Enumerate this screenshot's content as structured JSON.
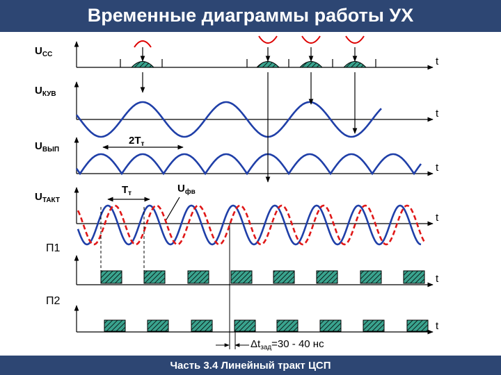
{
  "header": {
    "title": "Временные диаграммы работы УХ"
  },
  "signals": [
    {
      "name": "U",
      "sub": "СС"
    },
    {
      "name": "U",
      "sub": "КУВ"
    },
    {
      "name": "U",
      "sub": "ВЫП"
    },
    {
      "name": "U",
      "sub": "ТАКТ"
    },
    {
      "name": "П1"
    },
    {
      "name": "П2"
    }
  ],
  "axis_label": "t",
  "annotations": {
    "double_period": {
      "text": "2T",
      "sub": "т"
    },
    "period": {
      "text": "T",
      "sub": "т"
    },
    "phase_voltage": {
      "text": "U",
      "sub": "фв"
    },
    "delay": {
      "text": "Δt",
      "sub": "зад",
      "value": "=30 - 40 нс"
    }
  },
  "footer": {
    "title": "Часть 3.4 Линейный тракт ЦСП"
  }
}
